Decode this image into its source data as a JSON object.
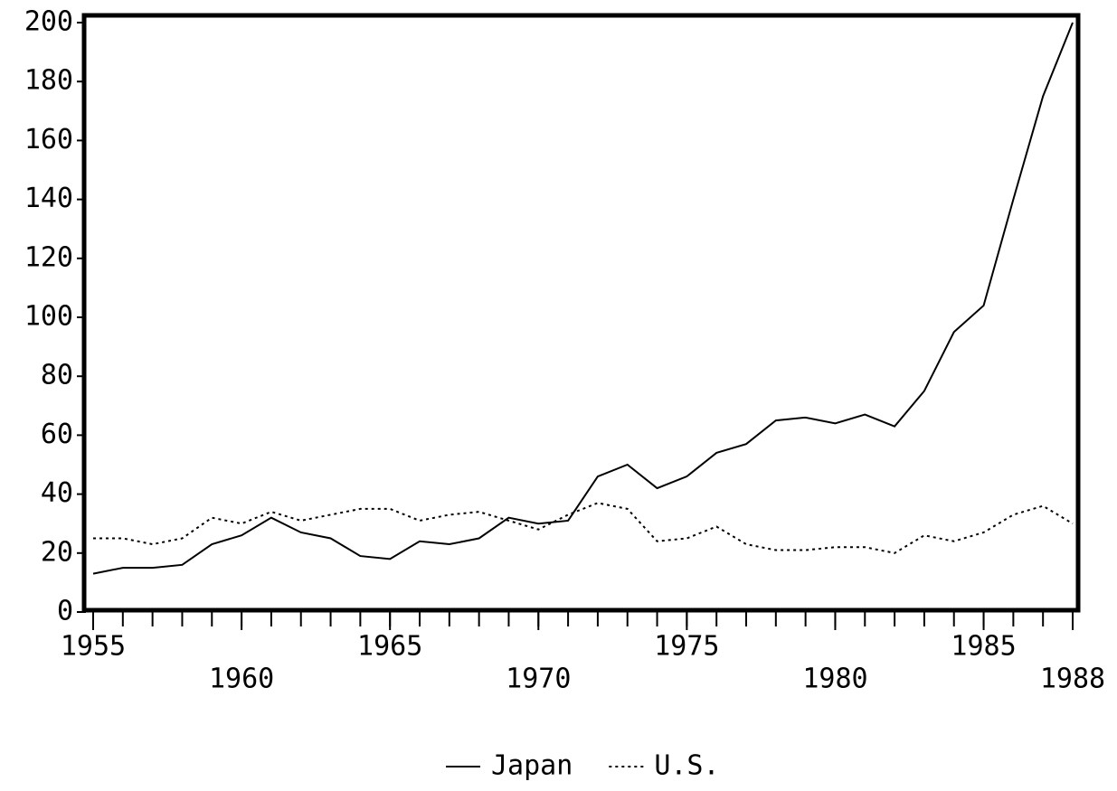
{
  "chart_data": {
    "type": "line",
    "x": [
      1955,
      1956,
      1957,
      1958,
      1959,
      1960,
      1961,
      1962,
      1963,
      1964,
      1965,
      1966,
      1967,
      1968,
      1969,
      1970,
      1971,
      1972,
      1973,
      1974,
      1975,
      1976,
      1977,
      1978,
      1979,
      1980,
      1981,
      1982,
      1983,
      1984,
      1985,
      1986,
      1987,
      1988
    ],
    "series": [
      {
        "name": "Japan",
        "color": "#000000",
        "dash": "solid",
        "values": [
          13,
          15,
          15,
          16,
          23,
          26,
          32,
          27,
          25,
          19,
          18,
          24,
          23,
          25,
          32,
          30,
          31,
          46,
          50,
          42,
          46,
          54,
          57,
          65,
          66,
          64,
          67,
          63,
          75,
          95,
          104,
          140,
          175,
          200
        ]
      },
      {
        "name": "U.S.",
        "color": "#000000",
        "dash": "dotted",
        "values": [
          25,
          25,
          23,
          25,
          32,
          30,
          34,
          31,
          33,
          35,
          35,
          31,
          33,
          34,
          31,
          28,
          33,
          37,
          35,
          24,
          25,
          29,
          23,
          21,
          21,
          22,
          22,
          20,
          26,
          24,
          27,
          33,
          36,
          30
        ]
      }
    ],
    "xlim": [
      1955,
      1988
    ],
    "xticks": [
      1955,
      1960,
      1965,
      1970,
      1975,
      1980,
      1985,
      1988
    ],
    "ylim": [
      0,
      200
    ],
    "yticks": [
      0,
      20,
      40,
      60,
      80,
      100,
      120,
      140,
      160,
      180,
      200
    ],
    "legend": "bottom"
  }
}
